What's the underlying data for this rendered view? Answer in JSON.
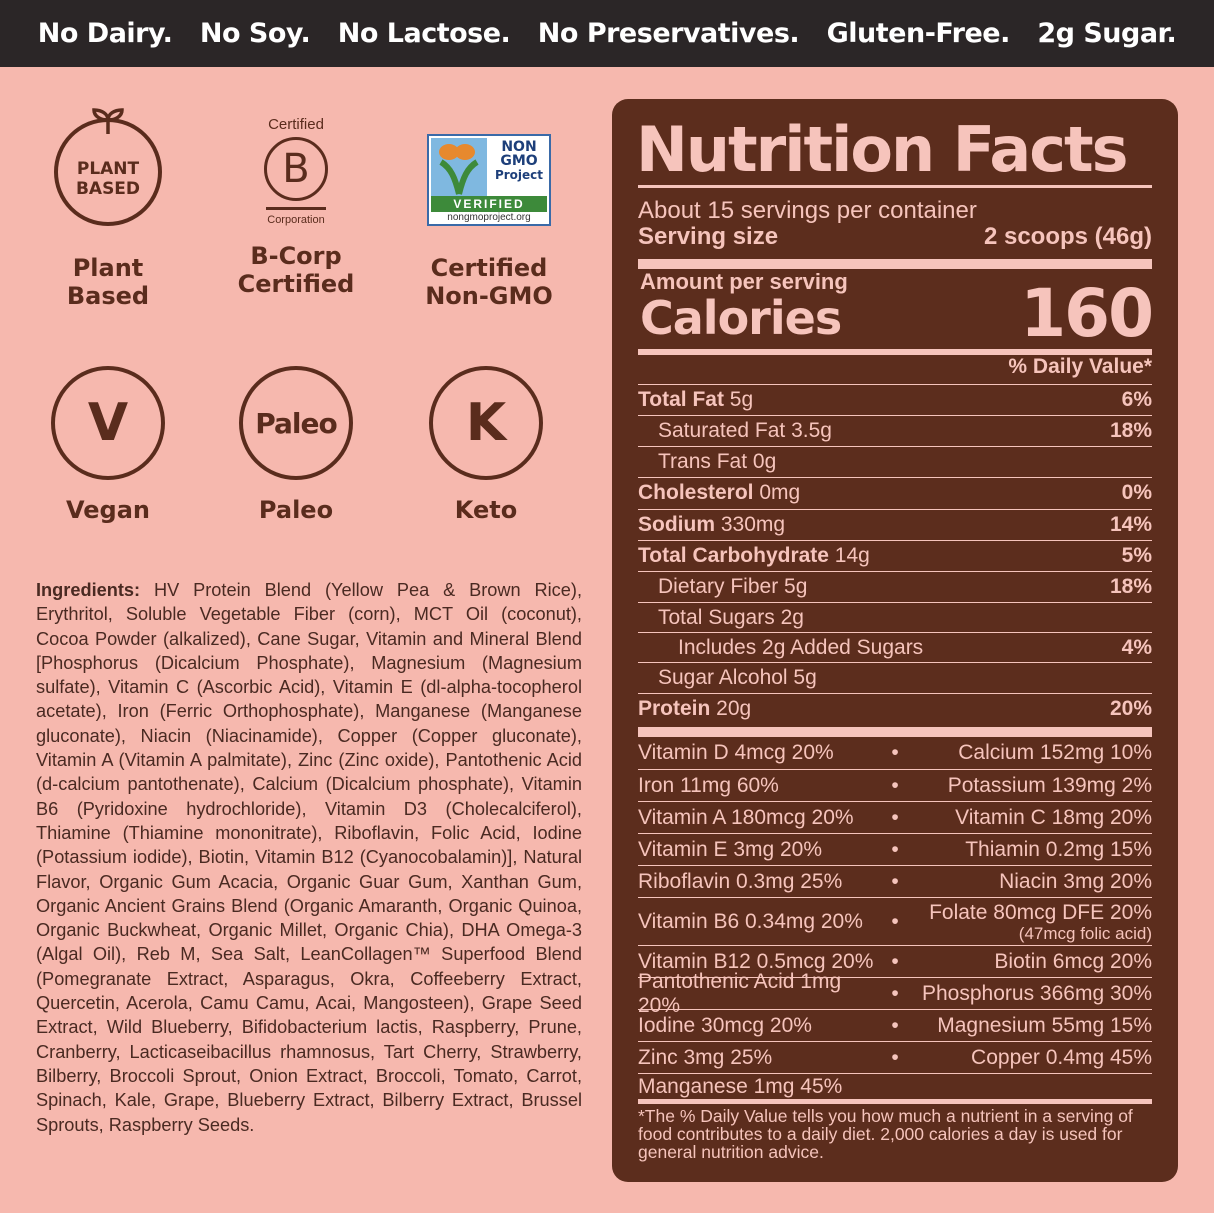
{
  "topbar": [
    "No Dairy.",
    "No Soy.",
    "No Lactose.",
    "No Preservatives.",
    "Gluten-Free.",
    "2g Sugar."
  ],
  "badges": {
    "plant": {
      "icon_text": "PLANT\nBASED",
      "label": "Plant\nBased"
    },
    "bcorp": {
      "top": "Certified",
      "letter": "B",
      "bottom": "Corporation",
      "label": "B-Corp\nCertified"
    },
    "nongmo": {
      "line1": "NON",
      "line2": "GMO",
      "line3": "Project",
      "verified": "VERIFIED",
      "url": "nongmoproject.org",
      "label": "Certified\nNon-GMO"
    },
    "vegan": {
      "letter": "V",
      "label": "Vegan"
    },
    "paleo": {
      "letter": "Paleo",
      "label": "Paleo"
    },
    "keto": {
      "letter": "K",
      "label": "Keto"
    }
  },
  "ingredients": {
    "heading": "Ingredients:",
    "text": "HV Protein Blend (Yellow Pea & Brown Rice), Erythritol, Soluble Vegetable Fiber (corn), MCT Oil (coconut), Cocoa Powder (alkalized), Cane Sugar, Vitamin and Mineral Blend [Phosphorus (Dicalcium Phosphate), Magnesium (Magnesium sulfate), Vitamin C (Ascorbic Acid), Vitamin E (dl-alpha-tocopherol acetate), Iron (Ferric Orthophosphate), Manganese (Manganese gluconate), Niacin (Niacinamide), Copper (Copper gluconate), Vitamin A (Vitamin A palmitate), Zinc (Zinc oxide), Pantothenic Acid (d-calcium pantothenate), Calcium (Dicalcium phosphate), Vitamin B6 (Pyridoxine hydrochloride), Vitamin D3 (Cholecalciferol), Thiamine (Thiamine mononitrate), Riboflavin, Folic Acid, Iodine (Potassium iodide), Biotin, Vitamin B12 (Cyanocobalamin)], Natural Flavor, Organic Gum Acacia, Organic Guar Gum, Xanthan Gum, Organic Ancient Grains Blend (Organic Amaranth, Organic Quinoa, Organic Buckwheat, Organic Millet, Organic Chia), DHA Omega-3 (Algal Oil), Reb M, Sea Salt, LeanCollagen™ Superfood Blend (Pomegranate Extract, Asparagus, Okra, Coffeeberry Extract, Quercetin, Acerola, Camu Camu, Acai, Mangosteen), Grape Seed Extract, Wild Blueberry, Bifidobacterium lactis, Raspberry, Prune, Cranberry, Lacticaseibacillus rhamnosus, Tart Cherry, Strawberry, Bilberry, Broccoli Sprout, Onion Extract, Broccoli, Tomato, Carrot, Spinach, Kale, Grape, Blueberry Extract, Bilberry Extract, Brussel Sprouts, Raspberry Seeds."
  },
  "nutrition": {
    "title": "Nutrition Facts",
    "servings": "About 15 servings per container",
    "serving_size_label": "Serving size",
    "serving_size_value": "2 scoops (46g)",
    "amount_per_serving": "Amount per serving",
    "calories_label": "Calories",
    "calories_value": "160",
    "dv_header": "% Daily Value*",
    "rows": [
      {
        "bold": "Total Fat",
        "rest": " 5g",
        "pct": "6%",
        "indent": 0
      },
      {
        "bold": "",
        "rest": "Saturated Fat 3.5g",
        "pct": "18%",
        "indent": 1
      },
      {
        "bold": "",
        "rest": "Trans Fat 0g",
        "pct": "",
        "indent": 1
      },
      {
        "bold": "Cholesterol",
        "rest": " 0mg",
        "pct": "0%",
        "indent": 0
      },
      {
        "bold": "Sodium",
        "rest": " 330mg",
        "pct": "14%",
        "indent": 0
      },
      {
        "bold": "Total Carbohydrate",
        "rest": " 14g",
        "pct": "5%",
        "indent": 0
      },
      {
        "bold": "",
        "rest": "Dietary Fiber 5g",
        "pct": "18%",
        "indent": 1
      },
      {
        "bold": "",
        "rest": "Total Sugars 2g",
        "pct": "",
        "indent": 1
      },
      {
        "bold": "",
        "rest": "Includes 2g Added Sugars",
        "pct": "4%",
        "indent": 2
      },
      {
        "bold": "",
        "rest": "Sugar Alcohol 5g",
        "pct": "",
        "indent": 1
      },
      {
        "bold": "Protein",
        "rest": " 20g",
        "pct": "20%",
        "indent": 0
      }
    ],
    "vitamins": [
      {
        "left": "Vitamin D 4mcg 20%",
        "right": "Calcium 152mg 10%",
        "sub": ""
      },
      {
        "left": "Iron 11mg 60%",
        "right": "Potassium 139mg 2%",
        "sub": ""
      },
      {
        "left": "Vitamin A 180mcg 20%",
        "right": "Vitamin C 18mg 20%",
        "sub": ""
      },
      {
        "left": "Vitamin E 3mg 20%",
        "right": "Thiamin 0.2mg 15%",
        "sub": ""
      },
      {
        "left": "Riboflavin 0.3mg 25%",
        "right": "Niacin 3mg 20%",
        "sub": ""
      },
      {
        "left": "Vitamin B6 0.34mg 20%",
        "right": "Folate 80mcg DFE 20%",
        "sub": "(47mcg folic acid)"
      },
      {
        "left": "Vitamin B12 0.5mcg 20%",
        "right": "Biotin 6mcg 20%",
        "sub": ""
      },
      {
        "left": "Pantothenic Acid 1mg 20%",
        "right": "Phosphorus 366mg 30%",
        "sub": ""
      },
      {
        "left": "Iodine 30mcg 20%",
        "right": "Magnesium 55mg 15%",
        "sub": ""
      },
      {
        "left": "Zinc 3mg 25%",
        "right": "Copper 0.4mg 45%",
        "sub": ""
      },
      {
        "left": "Manganese 1mg 45%",
        "right": "",
        "sub": ""
      }
    ],
    "footnote": "*The % Daily Value tells you how much a nutrient in a serving of food contributes to a daily diet. 2,000 calories a day is used for general nutrition advice."
  }
}
